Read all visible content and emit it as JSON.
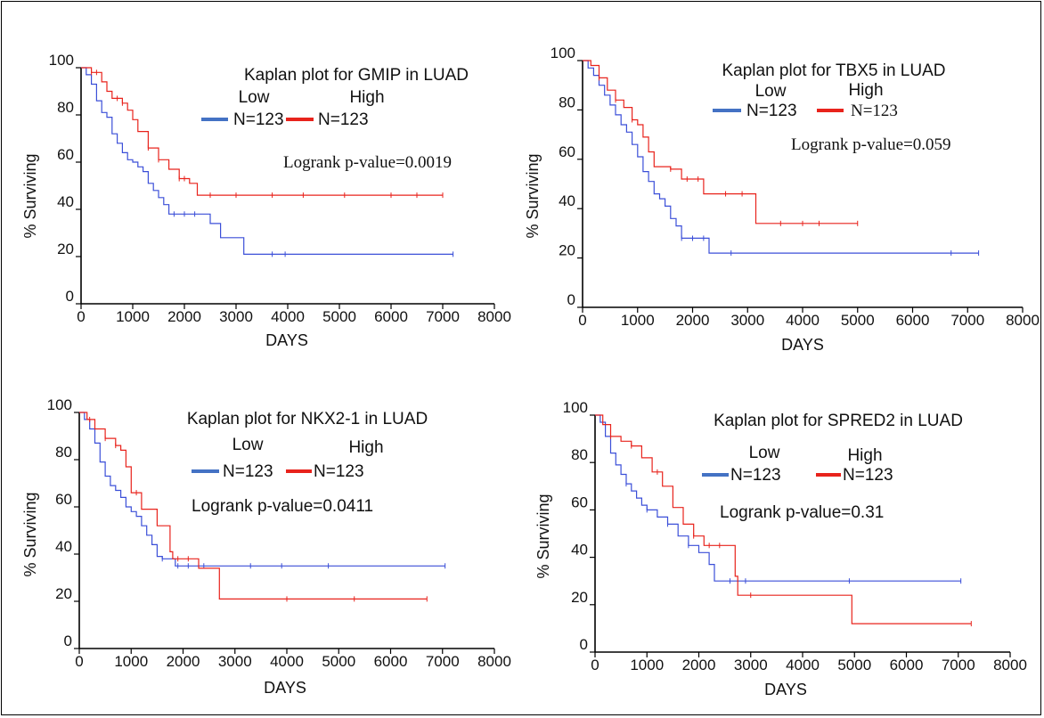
{
  "colors": {
    "low": "#3b4fd8",
    "high": "#e8231c",
    "legend_low": "#4472c4",
    "legend_high": "#e8231c"
  },
  "chart_data": [
    {
      "type": "line",
      "title": "Kaplan plot for GMIP in LUAD",
      "xlabel": "DAYS",
      "ylabel": "% Surviving",
      "xlim": [
        0,
        8000
      ],
      "ylim": [
        0,
        100
      ],
      "x_ticks": [
        "0",
        "1000",
        "2000",
        "3000",
        "4000",
        "5000",
        "6000",
        "7000",
        "8000"
      ],
      "y_ticks": [
        "0",
        "20",
        "40",
        "60",
        "80",
        "100"
      ],
      "legend": {
        "low_label": "Low",
        "high_label": "High",
        "low_n": "N=123",
        "high_n": "N=123"
      },
      "pvalue_text": "Logrank p-value=0.0019",
      "series": [
        {
          "name": "Low",
          "points": [
            [
              0,
              100
            ],
            [
              100,
              97
            ],
            [
              200,
              93
            ],
            [
              300,
              86
            ],
            [
              400,
              81
            ],
            [
              500,
              79
            ],
            [
              600,
              72
            ],
            [
              700,
              68
            ],
            [
              800,
              64
            ],
            [
              900,
              61
            ],
            [
              1000,
              60
            ],
            [
              1100,
              58
            ],
            [
              1200,
              56
            ],
            [
              1300,
              51
            ],
            [
              1400,
              48
            ],
            [
              1500,
              45
            ],
            [
              1600,
              42
            ],
            [
              1700,
              38
            ],
            [
              1800,
              38
            ],
            [
              2500,
              34
            ],
            [
              2700,
              28
            ],
            [
              3150,
              21
            ],
            [
              7200,
              21
            ]
          ],
          "censor": [
            1800,
            2000,
            2200,
            3700,
            3950,
            7200
          ]
        },
        {
          "name": "High",
          "points": [
            [
              0,
              100
            ],
            [
              200,
              98
            ],
            [
              400,
              94
            ],
            [
              500,
              90
            ],
            [
              600,
              87
            ],
            [
              800,
              85
            ],
            [
              900,
              82
            ],
            [
              1000,
              78
            ],
            [
              1100,
              73
            ],
            [
              1300,
              66
            ],
            [
              1500,
              61
            ],
            [
              1700,
              57
            ],
            [
              1900,
              53
            ],
            [
              2100,
              51
            ],
            [
              2250,
              46
            ],
            [
              7000,
              46
            ]
          ],
          "censor": [
            200,
            300,
            700,
            800,
            1300,
            1500,
            1900,
            2000,
            2500,
            3000,
            3700,
            4300,
            5100,
            6000,
            6500,
            7000
          ]
        }
      ]
    },
    {
      "type": "line",
      "title": "Kaplan plot for TBX5 in LUAD",
      "xlabel": "DAYS",
      "ylabel": "% Surviving",
      "xlim": [
        0,
        8000
      ],
      "ylim": [
        0,
        100
      ],
      "x_ticks": [
        "0",
        "1000",
        "2000",
        "3000",
        "4000",
        "5000",
        "6000",
        "7000",
        "8000"
      ],
      "y_ticks": [
        "0",
        "20",
        "40",
        "60",
        "80",
        "100"
      ],
      "legend": {
        "low_label": "Low",
        "high_label": "High",
        "low_n": "N=123",
        "high_n": "N=123"
      },
      "pvalue_text": "Logrank p-value=0.059",
      "series": [
        {
          "name": "Low",
          "points": [
            [
              0,
              100
            ],
            [
              100,
              97
            ],
            [
              200,
              94
            ],
            [
              300,
              90
            ],
            [
              400,
              86
            ],
            [
              500,
              82
            ],
            [
              600,
              78
            ],
            [
              700,
              74
            ],
            [
              800,
              71
            ],
            [
              900,
              66
            ],
            [
              1000,
              61
            ],
            [
              1100,
              55
            ],
            [
              1200,
              51
            ],
            [
              1300,
              46
            ],
            [
              1400,
              44
            ],
            [
              1500,
              41
            ],
            [
              1600,
              36
            ],
            [
              1700,
              33
            ],
            [
              1800,
              28
            ],
            [
              2300,
              22
            ],
            [
              7200,
              22
            ]
          ],
          "censor": [
            1800,
            2000,
            2200,
            2700,
            6700,
            7200
          ]
        },
        {
          "name": "High",
          "points": [
            [
              0,
              100
            ],
            [
              150,
              98
            ],
            [
              300,
              93
            ],
            [
              450,
              88
            ],
            [
              600,
              84
            ],
            [
              750,
              81
            ],
            [
              900,
              76
            ],
            [
              1000,
              74
            ],
            [
              1100,
              69
            ],
            [
              1200,
              63
            ],
            [
              1300,
              57
            ],
            [
              1600,
              56
            ],
            [
              1800,
              52
            ],
            [
              2200,
              46
            ],
            [
              3150,
              34
            ],
            [
              5000,
              34
            ]
          ],
          "censor": [
            300,
            600,
            900,
            1600,
            1900,
            2100,
            2600,
            2900,
            3600,
            4000,
            4300,
            5000
          ]
        }
      ]
    },
    {
      "type": "line",
      "title": "Kaplan plot for NKX2-1 in LUAD",
      "xlabel": "DAYS",
      "ylabel": "% Surviving",
      "xlim": [
        0,
        8000
      ],
      "ylim": [
        0,
        100
      ],
      "x_ticks": [
        "0",
        "1000",
        "2000",
        "3000",
        "4000",
        "5000",
        "6000",
        "7000",
        "8000"
      ],
      "y_ticks": [
        "0",
        "20",
        "40",
        "60",
        "80",
        "100"
      ],
      "legend": {
        "low_label": "Low",
        "high_label": "High",
        "low_n": "N=123",
        "high_n": "N=123"
      },
      "pvalue_text": "Logrank p-value=0.0411",
      "series": [
        {
          "name": "Low",
          "points": [
            [
              0,
              100
            ],
            [
              100,
              97
            ],
            [
              200,
              93
            ],
            [
              300,
              87
            ],
            [
              400,
              79
            ],
            [
              500,
              73
            ],
            [
              600,
              69
            ],
            [
              700,
              67
            ],
            [
              800,
              64
            ],
            [
              900,
              60
            ],
            [
              1000,
              58
            ],
            [
              1100,
              56
            ],
            [
              1200,
              52
            ],
            [
              1300,
              48
            ],
            [
              1400,
              44
            ],
            [
              1500,
              39
            ],
            [
              1600,
              38
            ],
            [
              1850,
              35
            ],
            [
              7050,
              35
            ]
          ],
          "censor": [
            1600,
            1900,
            2100,
            2400,
            3300,
            3900,
            4800,
            7050
          ]
        },
        {
          "name": "High",
          "points": [
            [
              0,
              100
            ],
            [
              150,
              97
            ],
            [
              300,
              93
            ],
            [
              500,
              89
            ],
            [
              700,
              86
            ],
            [
              800,
              84
            ],
            [
              900,
              77
            ],
            [
              1000,
              66
            ],
            [
              1200,
              59
            ],
            [
              1500,
              52
            ],
            [
              1750,
              41
            ],
            [
              1800,
              38
            ],
            [
              2300,
              34
            ],
            [
              2700,
              21
            ],
            [
              6700,
              21
            ]
          ],
          "censor": [
            200,
            500,
            700,
            1100,
            1900,
            2100,
            4000,
            5300,
            6700
          ]
        }
      ]
    },
    {
      "type": "line",
      "title": "Kaplan plot for SPRED2 in LUAD",
      "xlabel": "DAYS",
      "ylabel": "% Surviving",
      "xlim": [
        0,
        8000
      ],
      "ylim": [
        0,
        100
      ],
      "x_ticks": [
        "0",
        "1000",
        "2000",
        "3000",
        "4000",
        "5000",
        "6000",
        "7000",
        "8000"
      ],
      "y_ticks": [
        "0",
        "20",
        "40",
        "60",
        "80",
        "100"
      ],
      "legend": {
        "low_label": "Low",
        "high_label": "High",
        "low_n": "N=123",
        "high_n": "N=123"
      },
      "pvalue_text": "Logrank p-value=0.31",
      "series": [
        {
          "name": "Low",
          "points": [
            [
              0,
              100
            ],
            [
              100,
              97
            ],
            [
              200,
              91
            ],
            [
              300,
              84
            ],
            [
              400,
              79
            ],
            [
              500,
              75
            ],
            [
              600,
              71
            ],
            [
              700,
              68
            ],
            [
              800,
              65
            ],
            [
              900,
              62
            ],
            [
              1000,
              60
            ],
            [
              1200,
              57
            ],
            [
              1400,
              54
            ],
            [
              1600,
              49
            ],
            [
              1800,
              45
            ],
            [
              2000,
              42
            ],
            [
              2200,
              37
            ],
            [
              2300,
              30
            ],
            [
              7050,
              30
            ]
          ],
          "censor": [
            600,
            1000,
            1400,
            1800,
            2600,
            2900,
            4900,
            7050
          ]
        },
        {
          "name": "High",
          "points": [
            [
              0,
              100
            ],
            [
              150,
              96
            ],
            [
              300,
              91
            ],
            [
              500,
              89
            ],
            [
              700,
              87
            ],
            [
              900,
              82
            ],
            [
              1100,
              76
            ],
            [
              1300,
              70
            ],
            [
              1500,
              61
            ],
            [
              1700,
              54
            ],
            [
              1900,
              49
            ],
            [
              2100,
              45
            ],
            [
              2600,
              45
            ],
            [
              2700,
              32
            ],
            [
              2750,
              24
            ],
            [
              4950,
              24
            ],
            [
              4950,
              12
            ],
            [
              7250,
              12
            ]
          ],
          "censor": [
            300,
            700,
            1200,
            1900,
            2200,
            2400,
            3000,
            7250
          ]
        }
      ]
    }
  ]
}
